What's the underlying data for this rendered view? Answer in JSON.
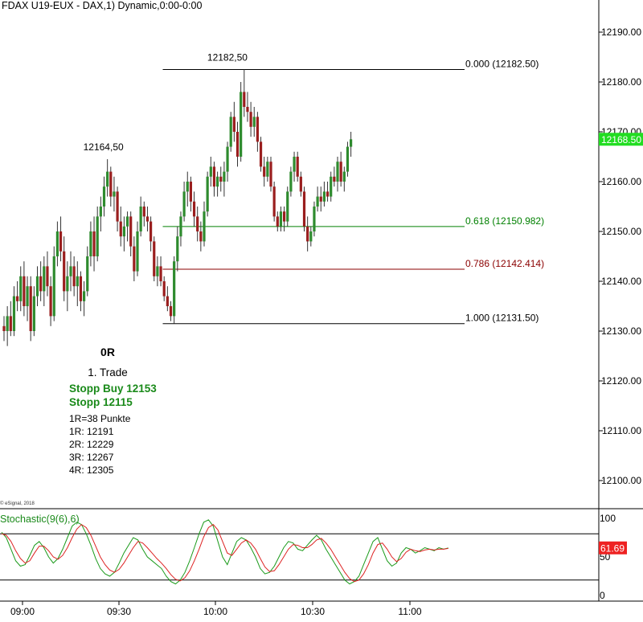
{
  "chart_data": [
    {
      "type": "candlestick",
      "title": "FDAX U19-EUX - DAX,1) Dynamic,0:00-0:00",
      "copyright": "© eSignal, 2018",
      "y_axis": {
        "ticks": [
          "12190.00",
          "12180.00",
          "12170.00",
          "12160.00",
          "12150.00",
          "12140.00",
          "12130.00",
          "12120.00",
          "12110.00",
          "12100.00"
        ],
        "tick_values": [
          12190,
          12180,
          12170,
          12160,
          12150,
          12140,
          12130,
          12120,
          12110,
          12100
        ],
        "ylim": [
          12094.5,
          12196.5
        ]
      },
      "x_axis": {
        "ticks": [
          "09:00",
          "09:30",
          "10:00",
          "10:30",
          "11:00"
        ],
        "tick_index": [
          4,
          34,
          64,
          94,
          124
        ]
      },
      "last_price": "12168.50",
      "candles": [
        [
          12131,
          12133,
          12128,
          12130
        ],
        [
          12130,
          12135,
          12127,
          12133
        ],
        [
          12133,
          12136,
          12129,
          12130
        ],
        [
          12130,
          12139,
          12129,
          12137
        ],
        [
          12137,
          12140,
          12134,
          12136
        ],
        [
          12136,
          12143,
          12134,
          12141
        ],
        [
          12141,
          12144,
          12133,
          12135
        ],
        [
          12135,
          12141,
          12132,
          12139
        ],
        [
          12139,
          12141,
          12128,
          12130
        ],
        [
          12130,
          12139,
          12129,
          12137
        ],
        [
          12137,
          12143,
          12135,
          12141
        ],
        [
          12141,
          12144,
          12136,
          12138
        ],
        [
          12138,
          12145,
          12135,
          12143
        ],
        [
          12143,
          12146,
          12137,
          12139
        ],
        [
          12139,
          12141,
          12131,
          12133
        ],
        [
          12133,
          12147,
          12132,
          12145
        ],
        [
          12145,
          12152,
          12143,
          12150
        ],
        [
          12150,
          12153,
          12144,
          12146
        ],
        [
          12146,
          12149,
          12136,
          12138
        ],
        [
          12138,
          12144,
          12134,
          12141
        ],
        [
          12141,
          12146,
          12138,
          12143
        ],
        [
          12143,
          12145,
          12137,
          12139
        ],
        [
          12139,
          12144,
          12135,
          12141
        ],
        [
          12141,
          12142,
          12134,
          12136
        ],
        [
          12136,
          12140,
          12133,
          12138
        ],
        [
          12138,
          12147,
          12137,
          12145
        ],
        [
          12145,
          12152,
          12143,
          12150
        ],
        [
          12150,
          12153,
          12142,
          12145
        ],
        [
          12145,
          12155,
          12144,
          12153
        ],
        [
          12153,
          12157,
          12150,
          12155
        ],
        [
          12155,
          12161,
          12153,
          12159
        ],
        [
          12159,
          12164.5,
          12157,
          12162
        ],
        [
          12162,
          12163,
          12155,
          12157
        ],
        [
          12157,
          12161,
          12154,
          12158
        ],
        [
          12158,
          12159,
          12150,
          12152
        ],
        [
          12152,
          12155,
          12147,
          12149
        ],
        [
          12149,
          12153,
          12146,
          12151
        ],
        [
          12151,
          12154,
          12148,
          12153
        ],
        [
          12153,
          12154,
          12145,
          12147
        ],
        [
          12147,
          12149,
          12140,
          12142
        ],
        [
          12142,
          12152,
          12141,
          12150
        ],
        [
          12150,
          12157,
          12149,
          12155
        ],
        [
          12155,
          12156,
          12151,
          12153
        ],
        [
          12153,
          12155,
          12150,
          12152
        ],
        [
          12152,
          12153,
          12146,
          12148
        ],
        [
          12148,
          12149,
          12140,
          12141
        ],
        [
          12141,
          12145,
          12139,
          12143
        ],
        [
          12143,
          12145,
          12139,
          12140
        ],
        [
          12140,
          12141,
          12136,
          12137
        ],
        [
          12137,
          12139,
          12134,
          12135
        ],
        [
          12135,
          12136,
          12132,
          12133
        ],
        [
          12133,
          12145,
          12131.5,
          12144
        ],
        [
          12144,
          12151,
          12142,
          12149
        ],
        [
          12149,
          12154,
          12147,
          12153
        ],
        [
          12153,
          12160,
          12152,
          12158
        ],
        [
          12158,
          12162,
          12155,
          12160
        ],
        [
          12160,
          12161,
          12154,
          12156
        ],
        [
          12156,
          12158,
          12151,
          12153
        ],
        [
          12153,
          12155,
          12148,
          12150
        ],
        [
          12150,
          12152,
          12146,
          12148
        ],
        [
          12148,
          12156,
          12147,
          12154
        ],
        [
          12154,
          12162,
          12153,
          12161
        ],
        [
          12161,
          12165,
          12159,
          12163
        ],
        [
          12163,
          12164,
          12157,
          12159
        ],
        [
          12159,
          12162,
          12157,
          12161
        ],
        [
          12161,
          12163,
          12158,
          12160
        ],
        [
          12160,
          12164,
          12157,
          12162
        ],
        [
          12162,
          12168,
          12160,
          12167
        ],
        [
          12167,
          12174,
          12166,
          12173
        ],
        [
          12173,
          12176,
          12168,
          12170
        ],
        [
          12170,
          12172,
          12163,
          12165
        ],
        [
          12165,
          12180,
          12164,
          12178
        ],
        [
          12178,
          12182.5,
          12173,
          12175
        ],
        [
          12175,
          12178,
          12172,
          12174
        ],
        [
          12174,
          12176,
          12169,
          12171
        ],
        [
          12171,
          12175,
          12169,
          12173
        ],
        [
          12173,
          12174,
          12166,
          12168
        ],
        [
          12168,
          12169,
          12162,
          12163
        ],
        [
          12163,
          12165,
          12159,
          12161
        ],
        [
          12161,
          12165,
          12160,
          12164
        ],
        [
          12164,
          12165,
          12158,
          12159
        ],
        [
          12159,
          12160,
          12152,
          12153
        ],
        [
          12153,
          12154,
          12150,
          12151
        ],
        [
          12151,
          12155,
          12150,
          12154
        ],
        [
          12154,
          12155,
          12150,
          12152
        ],
        [
          12152,
          12159,
          12151,
          12158
        ],
        [
          12158,
          12163,
          12157,
          12162
        ],
        [
          12162,
          12166,
          12160,
          12165
        ],
        [
          12165,
          12166,
          12160,
          12161
        ],
        [
          12161,
          12162,
          12157,
          12158
        ],
        [
          12158,
          12159,
          12150,
          12151
        ],
        [
          12151,
          12153,
          12146,
          12148
        ],
        [
          12148,
          12151,
          12147,
          12150
        ],
        [
          12150,
          12156,
          12149,
          12155
        ],
        [
          12155,
          12159,
          12154,
          12157
        ],
        [
          12157,
          12159,
          12154,
          12156
        ],
        [
          12156,
          12160,
          12155,
          12158
        ],
        [
          12158,
          12160,
          12156,
          12157
        ],
        [
          12157,
          12162,
          12156,
          12161
        ],
        [
          12161,
          12163,
          12159,
          12160
        ],
        [
          12160,
          12165,
          12158,
          12164
        ],
        [
          12164,
          12166,
          12159,
          12160
        ],
        [
          12160,
          12163,
          12158,
          12162
        ],
        [
          12162,
          12168,
          12161,
          12167
        ],
        [
          12167,
          12170,
          12165,
          12168.5
        ]
      ],
      "fibonacci": [
        {
          "label": "0.000 (12182.50)",
          "value": 12182.5,
          "color": "#000000"
        },
        {
          "label": "0.618 (12150.982)",
          "value": 12150.982,
          "color": "#008000"
        },
        {
          "label": "0.786 (12142.414)",
          "value": 12142.414,
          "color": "#8b0000"
        },
        {
          "label": "1.000 (12131.50)",
          "value": 12131.5,
          "color": "#000000"
        }
      ],
      "fib_range_index": [
        50,
        73
      ],
      "annotations": [
        {
          "text": "12182,50",
          "index": 73,
          "value": 12182.5
        },
        {
          "text": "12164,50",
          "index": 31,
          "value": 12164.5
        }
      ],
      "trade_note": {
        "lines": [
          {
            "text": "0R",
            "color": "#000000",
            "bold": true
          },
          {
            "text": "1. Trade",
            "color": "#000000",
            "bold": false
          },
          {
            "text": "Stopp Buy 12153",
            "color": "#1a8a1a",
            "bold": true
          },
          {
            "text": "Stopp 12115",
            "color": "#1a8a1a",
            "bold": true
          },
          {
            "text": "1R=38 Punkte",
            "color": "#000000",
            "bold": false
          },
          {
            "text": "1R: 12191",
            "color": "#000000",
            "bold": false
          },
          {
            "text": "2R: 12229",
            "color": "#000000",
            "bold": false
          },
          {
            "text": "3R: 12267",
            "color": "#000000",
            "bold": false
          },
          {
            "text": "4R: 12305",
            "color": "#000000",
            "bold": false
          }
        ]
      },
      "colors": {
        "up": "#2e8b2e",
        "down": "#9a1e1e",
        "wick": "#333333",
        "last_price_bg": "#22dd22",
        "stoch_value_bg": "#ee2222"
      }
    },
    {
      "type": "line",
      "title": "Stochastic(9(6),6)",
      "y_ticks": [
        "100",
        "50",
        "0"
      ],
      "y_tick_values": [
        100,
        50,
        0
      ],
      "levels": [
        80,
        20
      ],
      "ylim": [
        0,
        100
      ],
      "current_value": "61.69",
      "series": [
        {
          "color": "#1a9a1a",
          "values": [
            82,
            75,
            60,
            45,
            38,
            40,
            52,
            65,
            70,
            62,
            50,
            42,
            48,
            60,
            75,
            90,
            95,
            92,
            80,
            65,
            48,
            35,
            28,
            25,
            30,
            42,
            55,
            65,
            75,
            72,
            60,
            50,
            45,
            40,
            35,
            25,
            18,
            15,
            20,
            30,
            45,
            62,
            80,
            95,
            98,
            90,
            70,
            50,
            40,
            55,
            70,
            75,
            72,
            62,
            50,
            35,
            28,
            30,
            38,
            50,
            62,
            70,
            68,
            60,
            58,
            65,
            72,
            78,
            72,
            60,
            50,
            40,
            30,
            20,
            15,
            18,
            25,
            40,
            55,
            70,
            75,
            60,
            45,
            38,
            42,
            55,
            62,
            60,
            55,
            58,
            62,
            60,
            58,
            62,
            60,
            61.69
          ]
        },
        {
          "color": "#dd2222",
          "values": [
            80,
            78,
            70,
            58,
            48,
            42,
            45,
            55,
            64,
            64,
            58,
            50,
            47,
            52,
            62,
            75,
            86,
            92,
            88,
            78,
            64,
            50,
            40,
            33,
            30,
            34,
            42,
            52,
            62,
            70,
            68,
            62,
            55,
            48,
            42,
            35,
            27,
            21,
            19,
            23,
            32,
            45,
            60,
            76,
            88,
            92,
            85,
            70,
            55,
            52,
            60,
            68,
            72,
            68,
            60,
            48,
            37,
            31,
            32,
            40,
            50,
            60,
            66,
            65,
            62,
            62,
            66,
            72,
            74,
            68,
            60,
            50,
            40,
            30,
            22,
            18,
            20,
            28,
            40,
            55,
            66,
            68,
            60,
            50,
            44,
            48,
            56,
            60,
            58,
            57,
            59,
            60,
            59,
            60,
            60,
            61
          ]
        }
      ]
    }
  ]
}
